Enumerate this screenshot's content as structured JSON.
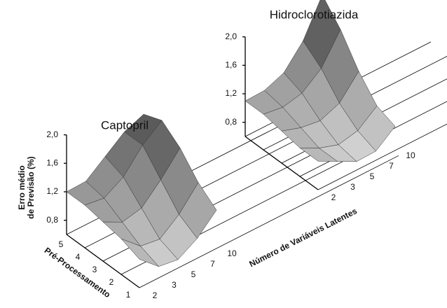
{
  "chart_data": [
    {
      "type": "surface",
      "title": "Captopril",
      "x_label": "Número de Variáveis Latentes",
      "y_label": "Pré-Processamento",
      "z_label": [
        "Erro médio",
        "de Previsão (%)"
      ],
      "categories": [
        "2",
        "3",
        "5",
        "7",
        "10"
      ],
      "y_categories": [
        "1",
        "2",
        "3",
        "4",
        "5"
      ],
      "z": [
        [
          1.0,
          0.75,
          0.7,
          0.85,
          1.1
        ],
        [
          1.1,
          0.85,
          0.8,
          1.0,
          1.3
        ],
        [
          1.15,
          1.0,
          1.05,
          1.3,
          1.6
        ],
        [
          1.2,
          1.15,
          1.3,
          1.6,
          1.8
        ],
        [
          1.2,
          1.2,
          1.4,
          1.6,
          1.7
        ]
      ],
      "zlim": [
        0.6,
        2.0
      ],
      "zticks": [
        {
          "value": 0.8,
          "label": "0,8"
        },
        {
          "value": 1.2,
          "label": "1,2"
        },
        {
          "value": 1.6,
          "label": "1,6"
        },
        {
          "value": 2.0,
          "label": "2,0"
        }
      ]
    },
    {
      "type": "surface",
      "title": "Hidroclorotiazida",
      "categories": [
        "2",
        "3",
        "5",
        "7",
        "10"
      ],
      "z": [
        [
          1.0,
          0.85,
          0.7,
          0.7,
          0.9
        ],
        [
          1.0,
          0.85,
          0.75,
          0.8,
          1.0
        ],
        [
          1.05,
          0.95,
          0.9,
          1.0,
          1.3
        ],
        [
          1.1,
          1.05,
          1.1,
          1.3,
          1.7
        ],
        [
          1.1,
          1.1,
          1.2,
          1.5,
          2.0
        ]
      ],
      "zlim": [
        0.6,
        2.0
      ],
      "zticks": [
        {
          "value": 0.8,
          "label": "0,8"
        },
        {
          "value": 1.2,
          "label": "1,2"
        },
        {
          "value": 1.6,
          "label": "1,6"
        },
        {
          "value": 2.0,
          "label": "2,0"
        }
      ]
    }
  ]
}
